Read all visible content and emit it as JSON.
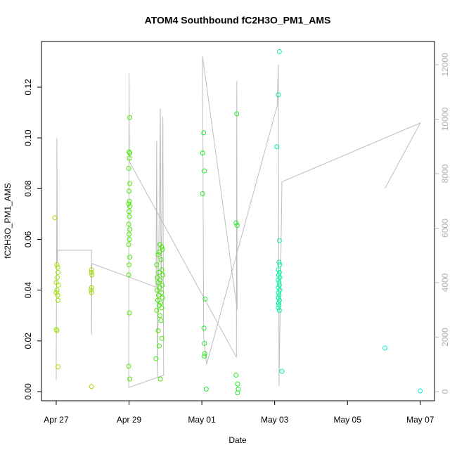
{
  "chart_data": {
    "type": "scatter",
    "title": "ATOM4 Southbound fC2H3O_PM1_AMS",
    "xlabel": "Date",
    "ylabel": "fC2H3O_PM1_AMS",
    "xlim": [
      -0.405,
      10.39
    ],
    "ylim": [
      -0.0036,
      0.138
    ],
    "y2lim": [
      -335,
      12850
    ],
    "xticks": [
      {
        "value": 0,
        "label": "Apr 27"
      },
      {
        "value": 2,
        "label": "Apr 29"
      },
      {
        "value": 4,
        "label": "May 01"
      },
      {
        "value": 6,
        "label": "May 03"
      },
      {
        "value": 8,
        "label": "May 05"
      },
      {
        "value": 10,
        "label": "May 07"
      }
    ],
    "yticks": [
      {
        "value": 0,
        "label": "0.00"
      },
      {
        "value": 0.02,
        "label": "0.02"
      },
      {
        "value": 0.04,
        "label": "0.04"
      },
      {
        "value": 0.06,
        "label": "0.06"
      },
      {
        "value": 0.08,
        "label": "0.08"
      },
      {
        "value": 0.1,
        "label": "0.10"
      },
      {
        "value": 0.12,
        "label": "0.12"
      }
    ],
    "y2ticks": [
      0,
      2000,
      4000,
      6000,
      8000,
      10000,
      12000
    ],
    "series": [
      {
        "type": "scatter",
        "color": "#9be000",
        "x": [
          -0.04,
          0.02,
          0.04,
          0.05,
          0.03,
          0.0,
          0.06,
          0.02,
          0.0,
          0.04,
          0.05,
          0.0,
          0.02,
          0.05,
          0.97,
          0.97,
          0.98,
          0.97,
          0.96,
          0.97,
          0.97
        ],
        "values": [
          0.0685,
          0.05,
          0.049,
          0.047,
          0.045,
          0.043,
          0.042,
          0.04,
          0.039,
          0.038,
          0.036,
          0.0245,
          0.024,
          0.0098,
          0.048,
          0.047,
          0.046,
          0.041,
          0.04,
          0.039,
          0.002
        ]
      },
      {
        "type": "scatter",
        "color": "#44e800",
        "x": [
          2.02,
          2.0,
          2.02,
          2.01,
          1.99,
          2.02,
          2.0,
          2.01,
          1.99,
          2.02,
          2.0,
          2.01,
          1.99,
          2.02,
          2.0,
          2.01,
          1.99,
          2.02,
          2.0,
          1.99,
          2.01,
          1.99,
          2.02,
          2.85,
          2.9,
          2.92,
          2.83,
          2.8,
          2.88,
          2.76,
          2.9,
          2.82,
          2.93,
          2.78,
          2.86,
          2.8,
          2.91,
          2.84,
          2.77,
          2.89,
          2.81,
          2.92,
          2.79,
          2.87,
          2.83,
          2.9,
          2.76,
          2.85,
          2.88,
          2.8,
          2.9,
          2.83,
          2.74,
          2.86
        ],
        "values": [
          0.108,
          0.0945,
          0.094,
          0.092,
          0.088,
          0.082,
          0.079,
          0.075,
          0.074,
          0.073,
          0.071,
          0.069,
          0.066,
          0.064,
          0.062,
          0.06,
          0.058,
          0.053,
          0.05,
          0.046,
          0.031,
          0.01,
          0.005,
          0.058,
          0.057,
          0.056,
          0.055,
          0.054,
          0.052,
          0.05,
          0.048,
          0.047,
          0.046,
          0.045,
          0.044,
          0.043,
          0.042,
          0.041,
          0.04,
          0.039,
          0.038,
          0.037,
          0.036,
          0.035,
          0.034,
          0.033,
          0.032,
          0.03,
          0.028,
          0.024,
          0.021,
          0.018,
          0.013,
          0.005
        ]
      },
      {
        "type": "scatter",
        "color": "#22e822",
        "x": [
          4.05,
          4.02,
          4.07,
          4.02,
          4.09,
          4.06,
          4.07,
          4.08,
          4.07,
          4.12,
          4.96,
          4.94,
          4.97,
          4.94,
          4.98,
          5.0,
          4.98
        ],
        "values": [
          0.102,
          0.094,
          0.087,
          0.078,
          0.0365,
          0.025,
          0.019,
          0.015,
          0.014,
          0.001,
          0.1095,
          0.0665,
          0.0655,
          0.0065,
          0.003,
          0.001,
          -0.0005
        ]
      },
      {
        "type": "scatter",
        "color": "#00f5a0",
        "x": [
          6.13,
          6.1,
          6.06,
          6.13,
          6.12,
          6.14,
          6.1,
          6.13,
          6.11,
          6.14,
          6.1,
          6.12,
          6.13,
          6.1,
          6.14,
          6.11,
          6.12,
          6.1,
          6.13,
          6.11,
          6.12,
          6.1,
          6.13,
          6.2
        ],
        "values": [
          0.134,
          0.117,
          0.0965,
          0.0595,
          0.051,
          0.05,
          0.048,
          0.047,
          0.046,
          0.045,
          0.044,
          0.043,
          0.042,
          0.041,
          0.04,
          0.039,
          0.038,
          0.037,
          0.036,
          0.035,
          0.034,
          0.033,
          0.032,
          0.008
        ]
      },
      {
        "type": "scatter",
        "color": "#00f0d0",
        "x": [
          9.03,
          10.0
        ],
        "values": [
          0.0172,
          0.0003
        ]
      },
      {
        "type": "line",
        "axis": "y2",
        "color": "#bebebe",
        "x": [
          0.0,
          0.02,
          0.03,
          0.04,
          0.97,
          0.97,
          0.98,
          2.74,
          2.76,
          2.78,
          2.86,
          2.88,
          2.93,
          2.95,
          1.99,
          2.0,
          2.01,
          4.95,
          4.96,
          4.97,
          4.02,
          4.05,
          4.13,
          6.07,
          6.1,
          6.12,
          6.2,
          10.0,
          9.03
        ],
        "values": [
          440,
          9300,
          4720,
          5190,
          5190,
          2100,
          4700,
          3840,
          9200,
          500,
          10400,
          3500,
          10100,
          600,
          150,
          11700,
          8440,
          1260,
          11400,
          3000,
          12300,
          2000,
          1000,
          10500,
          12000,
          200,
          7700,
          9860,
          7460
        ]
      }
    ]
  }
}
